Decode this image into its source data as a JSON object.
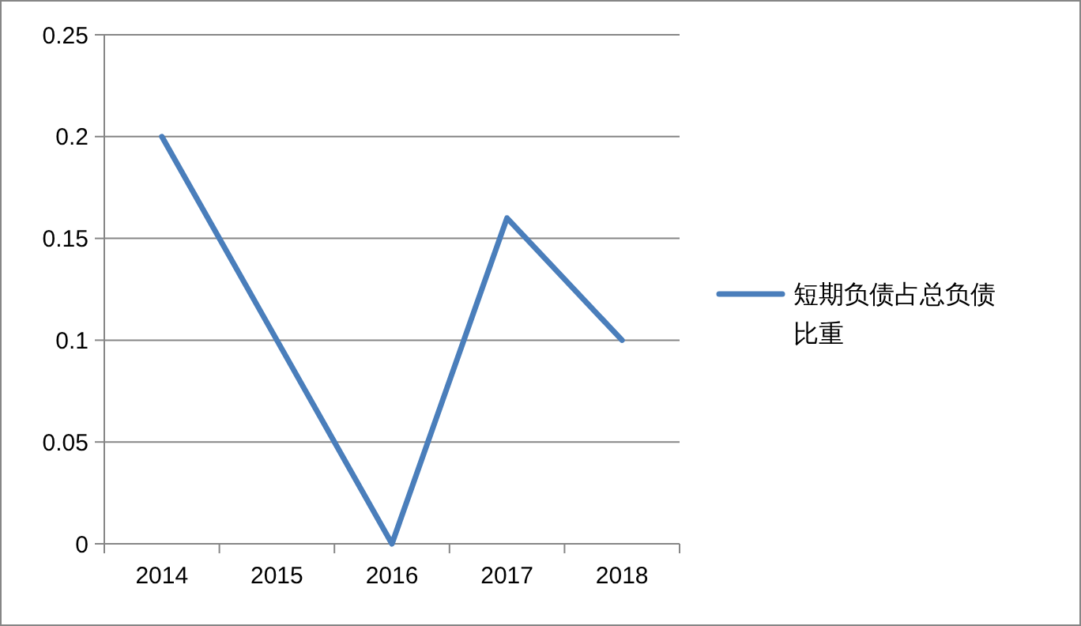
{
  "chart_data": {
    "type": "line",
    "categories": [
      "2014",
      "2015",
      "2016",
      "2017",
      "2018"
    ],
    "series": [
      {
        "name": "短期负债占总负债比重",
        "color": "#4a7ebb",
        "values": [
          0.2,
          0.1,
          0,
          0.16,
          0.1
        ]
      }
    ],
    "ylim": [
      0,
      0.25
    ],
    "yticks": [
      0,
      0.05,
      0.1,
      0.15,
      0.2,
      0.25
    ],
    "grid": "y",
    "legend": "right",
    "marker": "none",
    "line_style": "solid"
  }
}
